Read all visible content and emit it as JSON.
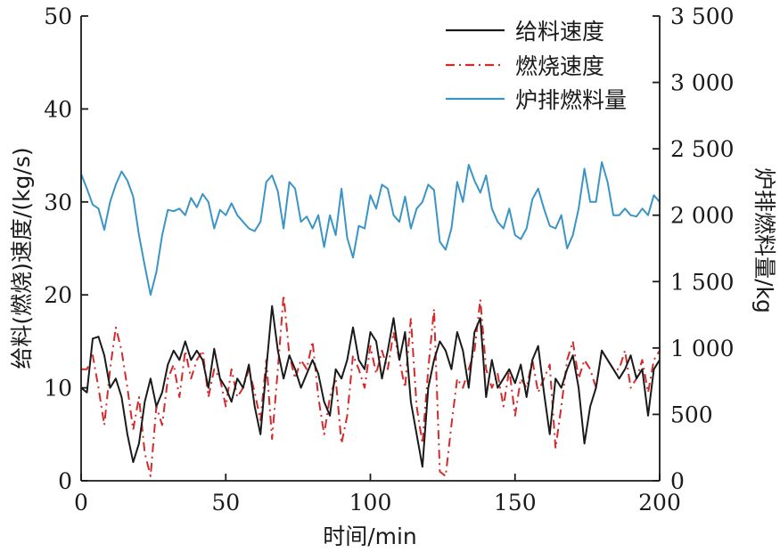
{
  "chart_data": {
    "type": "line",
    "xlabel": "时间/min",
    "ylabel_left": "给料(燃烧)速度/(kg/s)",
    "ylabel_right": "炉排燃料量/kg",
    "xlim": [
      0,
      200
    ],
    "ylim_left": [
      0,
      50
    ],
    "ylim_right": [
      0,
      3500
    ],
    "x_ticks": [
      0,
      50,
      100,
      150,
      200
    ],
    "y_left_ticks": [
      0,
      10,
      20,
      30,
      40,
      50
    ],
    "y_right_ticks": [
      0,
      500,
      1000,
      1500,
      2000,
      2500,
      3000,
      3500
    ],
    "y_right_tick_labels": [
      "0",
      "500",
      "1 000",
      "1 500",
      "2 000",
      "2 500",
      "3 000",
      "3 500"
    ],
    "grid": false,
    "legend_position": "top-right",
    "series": [
      {
        "name": "给料速度",
        "axis": "left",
        "color": "#1a1a1a",
        "dash": "solid",
        "x": [
          0,
          2,
          4,
          6,
          8,
          10,
          12,
          14,
          16,
          18,
          20,
          22,
          24,
          26,
          28,
          30,
          32,
          34,
          36,
          38,
          40,
          42,
          44,
          46,
          48,
          50,
          52,
          54,
          56,
          58,
          60,
          62,
          64,
          66,
          68,
          70,
          72,
          74,
          76,
          78,
          80,
          82,
          84,
          86,
          88,
          90,
          92,
          94,
          96,
          98,
          100,
          102,
          104,
          106,
          108,
          110,
          112,
          114,
          116,
          118,
          120,
          122,
          124,
          126,
          128,
          130,
          132,
          134,
          136,
          138,
          140,
          142,
          144,
          146,
          148,
          150,
          152,
          154,
          156,
          158,
          160,
          162,
          164,
          166,
          168,
          170,
          172,
          174,
          176,
          178,
          180,
          182,
          184,
          186,
          188,
          190,
          192,
          194,
          196,
          198,
          200
        ],
        "y": [
          10,
          9.5,
          15.3,
          15.5,
          13.5,
          10,
          11,
          9,
          5,
          2,
          4,
          8.5,
          11,
          8,
          9.5,
          12.5,
          14,
          13,
          15,
          13,
          14,
          13,
          10,
          14.2,
          11,
          10,
          8.5,
          11,
          10,
          12.5,
          8,
          5,
          12,
          18.8,
          14,
          11,
          13.5,
          12,
          10,
          11.5,
          13,
          11.5,
          8.5,
          7,
          12,
          11,
          13,
          16.5,
          13,
          12,
          16,
          15,
          11,
          14,
          17.5,
          13,
          16,
          8.5,
          5,
          1.5,
          10,
          13,
          15,
          14,
          12,
          16,
          14,
          10,
          16,
          17.5,
          9,
          13,
          10,
          11,
          12,
          10.5,
          12.5,
          9,
          13,
          14.5,
          9.5,
          5,
          11,
          10,
          12,
          13.5,
          10,
          4,
          8,
          10,
          14,
          13,
          12,
          11,
          12,
          13.5,
          11,
          12,
          7,
          12,
          13
        ]
      },
      {
        "name": "燃烧速度",
        "axis": "left",
        "color": "#d42a2a",
        "dash": "dashdot",
        "x": [
          0,
          2,
          4,
          6,
          8,
          10,
          12,
          14,
          16,
          18,
          20,
          22,
          24,
          26,
          28,
          30,
          32,
          34,
          36,
          38,
          40,
          42,
          44,
          46,
          48,
          50,
          52,
          54,
          56,
          58,
          60,
          62,
          64,
          66,
          68,
          70,
          72,
          74,
          76,
          78,
          80,
          82,
          84,
          86,
          88,
          90,
          92,
          94,
          96,
          98,
          100,
          102,
          104,
          106,
          108,
          110,
          112,
          114,
          116,
          118,
          120,
          122,
          124,
          126,
          128,
          130,
          132,
          134,
          136,
          138,
          140,
          142,
          144,
          146,
          148,
          150,
          152,
          154,
          156,
          158,
          160,
          162,
          164,
          166,
          168,
          170,
          172,
          174,
          176,
          178,
          180,
          182,
          184,
          186,
          188,
          190,
          192,
          194,
          196,
          198,
          200
        ],
        "y": [
          12,
          12,
          13.5,
          10,
          6,
          12,
          16.5,
          14,
          10,
          5.5,
          9,
          3,
          0.5,
          8,
          6,
          11,
          12.5,
          9,
          14,
          11,
          13,
          14,
          9,
          12,
          11,
          8,
          12,
          9,
          10,
          12,
          9.5,
          6.5,
          13,
          4.5,
          12,
          20,
          13.5,
          11,
          13,
          12,
          15,
          9,
          5,
          9,
          11,
          4,
          7,
          13.5,
          12,
          10,
          14.5,
          11.5,
          14,
          12,
          16,
          13,
          10,
          17.5,
          8,
          4,
          12,
          18.5,
          1,
          0.5,
          6,
          11,
          10,
          12,
          14,
          19.5,
          12,
          10,
          11.5,
          8,
          12,
          7,
          11,
          10,
          13,
          9.5,
          11,
          12.5,
          3.5,
          8,
          13,
          15,
          11,
          13,
          12,
          10,
          14,
          13,
          12,
          12,
          14,
          10,
          11,
          13,
          9.5,
          13,
          14
        ]
      },
      {
        "name": "炉排燃料量",
        "axis": "right",
        "color": "#3a95c6",
        "dash": "solid",
        "x": [
          0,
          2,
          4,
          6,
          8,
          10,
          12,
          14,
          16,
          18,
          20,
          22,
          24,
          26,
          28,
          30,
          32,
          34,
          36,
          38,
          40,
          42,
          44,
          46,
          48,
          50,
          52,
          54,
          56,
          58,
          60,
          62,
          64,
          66,
          68,
          70,
          72,
          74,
          76,
          78,
          80,
          82,
          84,
          86,
          88,
          90,
          92,
          94,
          96,
          98,
          100,
          102,
          104,
          106,
          108,
          110,
          112,
          114,
          116,
          118,
          120,
          122,
          124,
          126,
          128,
          130,
          132,
          134,
          136,
          138,
          140,
          142,
          144,
          146,
          148,
          150,
          152,
          154,
          156,
          158,
          160,
          162,
          164,
          166,
          168,
          170,
          172,
          174,
          176,
          178,
          180,
          182,
          184,
          186,
          188,
          190,
          192,
          194,
          196,
          198,
          200
        ],
        "y": [
          2310,
          2200,
          2080,
          2050,
          1890,
          2100,
          2230,
          2330,
          2260,
          2140,
          1850,
          1620,
          1400,
          1570,
          1850,
          2040,
          2030,
          2050,
          2000,
          2130,
          2060,
          2160,
          2100,
          1900,
          2040,
          2000,
          2090,
          2000,
          1950,
          1900,
          1880,
          1950,
          2250,
          2300,
          2180,
          1900,
          2250,
          2200,
          1950,
          1990,
          1900,
          2000,
          1760,
          2000,
          1850,
          2200,
          1830,
          1680,
          1920,
          1900,
          2150,
          2050,
          2230,
          2200,
          2000,
          1950,
          2140,
          1900,
          2050,
          2100,
          2230,
          2190,
          1800,
          1740,
          1900,
          2250,
          2100,
          2380,
          2260,
          2170,
          2300,
          2050,
          1950,
          1900,
          2050,
          1850,
          1820,
          1900,
          2120,
          2200,
          2050,
          1920,
          1900,
          2000,
          1750,
          1850,
          2050,
          2350,
          2100,
          2100,
          2400,
          2250,
          2000,
          2000,
          2050,
          2000,
          1990,
          2050,
          2000,
          2150,
          2100
        ]
      }
    ]
  }
}
